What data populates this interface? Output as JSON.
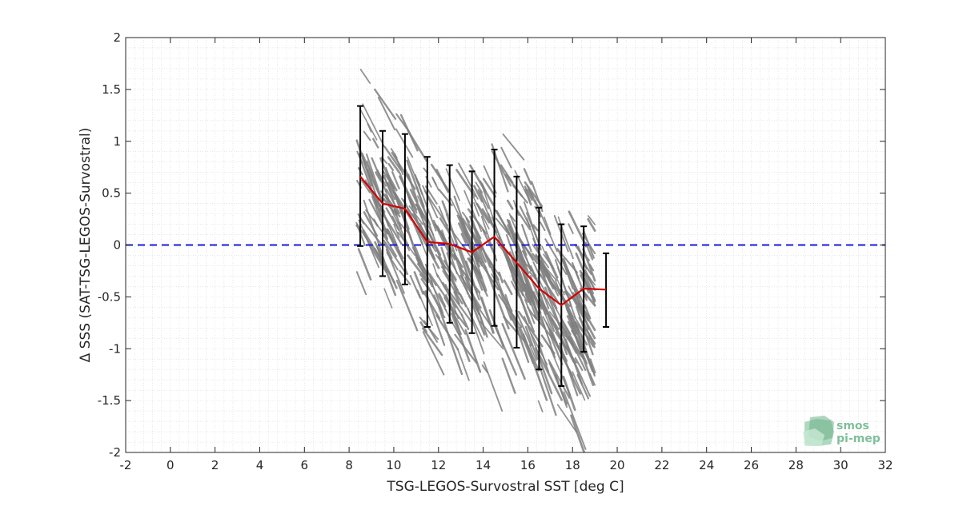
{
  "chart_data": {
    "type": "line",
    "xlabel": "TSG-LEGOS-Survostral SST [deg C]",
    "ylabel": "Δ SSS (SAT-TSG-LEGOS-Survostral)",
    "xlim": [
      -2,
      32
    ],
    "ylim": [
      -2,
      2
    ],
    "xticks": [
      -2,
      0,
      2,
      4,
      6,
      8,
      10,
      12,
      14,
      16,
      18,
      20,
      22,
      24,
      26,
      28,
      30,
      32
    ],
    "yticks": [
      -2,
      -1.5,
      -1,
      -0.5,
      0,
      0.5,
      1,
      1.5,
      2
    ],
    "grid": "minor-dotted",
    "reference_line": {
      "y": 0,
      "style": "dashed",
      "color": "#1a1adb"
    },
    "series": [
      {
        "x": [
          8.5,
          9.5,
          10.5,
          11.5,
          12.5,
          13.5,
          14.5,
          15.5,
          16.5,
          17.5,
          18.5,
          19.5
        ],
        "mean": [
          0.66,
          0.4,
          0.35,
          0.03,
          0.01,
          -0.07,
          0.08,
          -0.17,
          -0.42,
          -0.58,
          -0.42,
          -0.43
        ],
        "upper": [
          1.34,
          1.1,
          1.07,
          0.85,
          0.77,
          0.71,
          0.92,
          0.66,
          0.36,
          0.2,
          0.18,
          -0.08
        ],
        "lower": [
          -0.01,
          -0.3,
          -0.38,
          -0.79,
          -0.75,
          -0.85,
          -0.78,
          -0.99,
          -1.2,
          -1.36,
          -1.03,
          -0.79
        ],
        "color": "#d40000",
        "errorbar_color": "#000000"
      }
    ],
    "scatter": {
      "color": "#7f7f7f",
      "x_range": [
        8.3,
        18.8
      ],
      "y_range": [
        -1.9,
        1.9
      ]
    }
  },
  "logo": {
    "line1": "smos",
    "line2": "pi-mep",
    "color": "#7fbf9a"
  }
}
